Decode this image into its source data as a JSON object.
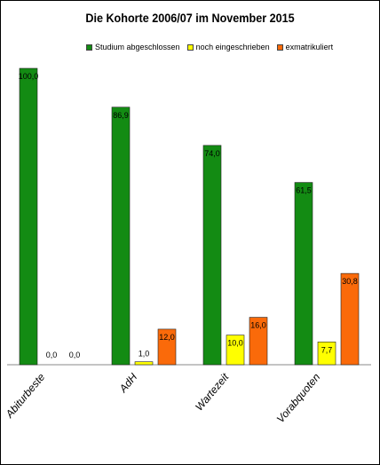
{
  "chart_data": {
    "type": "bar",
    "title": "Die Kohorte 2006/07 im November 2015",
    "categories": [
      "Abiturbeste",
      "AdH",
      "Wartezeit",
      "Vorabquoten"
    ],
    "series": [
      {
        "name": "Studium abgeschlossen",
        "color": "#138b13",
        "values": [
          100.0,
          86.9,
          74.0,
          61.5
        ],
        "labels": [
          "100,0",
          "86,9",
          "74,0",
          "61,5"
        ]
      },
      {
        "name": "noch eingeschrieben",
        "color": "#ffff00",
        "values": [
          0.0,
          1.0,
          10.0,
          7.7
        ],
        "labels": [
          "0,0",
          "1,0",
          "10,0",
          "7,7"
        ]
      },
      {
        "name": "exmatrikuliert",
        "color": "#fa6a0a",
        "values": [
          0.0,
          12.0,
          16.0,
          30.8
        ],
        "labels": [
          "0,0",
          "12,0",
          "16,0",
          "30,8"
        ]
      }
    ],
    "ylim": [
      0,
      100
    ],
    "grid": false,
    "legend_position": "top"
  }
}
